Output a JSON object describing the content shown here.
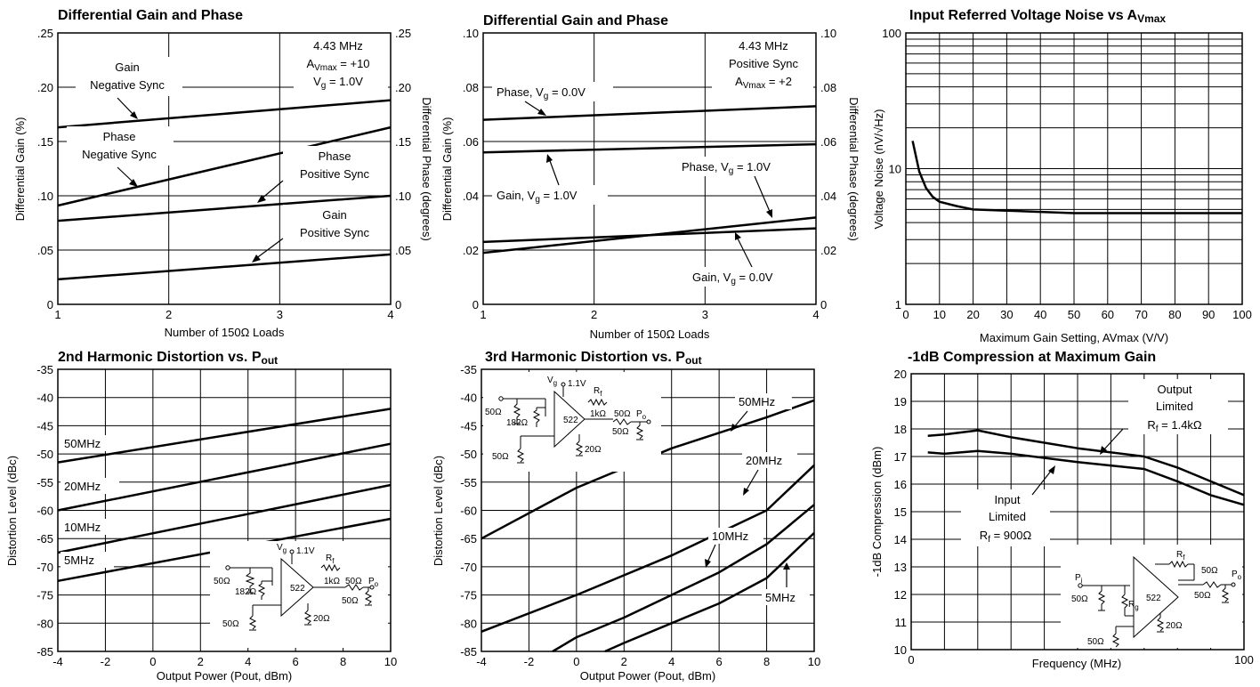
{
  "chart_data": [
    {
      "id": "p1",
      "type": "line",
      "title": "Differential Gain and Phase",
      "xlabel": "Number of 150Ω Loads",
      "ylabel": "Differential Gain (%)",
      "y2label": "Differential Phase (degrees)",
      "xlim": [
        1,
        4
      ],
      "ylim": [
        0,
        0.25
      ],
      "y2lim": [
        0,
        0.25
      ],
      "xticks": [
        "1",
        "2",
        "3",
        "4"
      ],
      "yticks": [
        ".25",
        ".20",
        ".15",
        ".10",
        ".05",
        "0"
      ],
      "y2ticks": [
        ".25",
        ".20",
        ".15",
        ".10",
        ".05",
        "0"
      ],
      "grid": true,
      "annotations": [
        "4.43 MHz",
        "Avmax = +10",
        "Vg = 1.0V"
      ],
      "series": [
        {
          "name": "Gain Negative Sync",
          "x": [
            1,
            4
          ],
          "values": [
            0.163,
            0.188
          ]
        },
        {
          "name": "Phase Negative Sync",
          "x": [
            1,
            4
          ],
          "values": [
            0.091,
            0.163
          ]
        },
        {
          "name": "Phase Positive Sync",
          "x": [
            1,
            4
          ],
          "values": [
            0.077,
            0.1
          ]
        },
        {
          "name": "Gain Positive Sync",
          "x": [
            1,
            4
          ],
          "values": [
            0.023,
            0.046
          ]
        }
      ]
    },
    {
      "id": "p2",
      "type": "line",
      "title": "Differential Gain and Phase",
      "xlabel": "Number of 150Ω Loads",
      "ylabel": "Differential Gain (%)",
      "y2label": "Differential Phase (degrees)",
      "xlim": [
        1,
        4
      ],
      "ylim": [
        0,
        0.1
      ],
      "y2lim": [
        0,
        0.1
      ],
      "xticks": [
        "1",
        "2",
        "3",
        "4"
      ],
      "yticks": [
        ".10",
        ".08",
        ".06",
        ".04",
        ".02",
        "0"
      ],
      "y2ticks": [
        ".10",
        ".08",
        ".06",
        ".04",
        ".02",
        "0"
      ],
      "grid": true,
      "annotations": [
        "4.43 MHz",
        "Positive Sync",
        "Avmax = +2"
      ],
      "series": [
        {
          "name": "Phase, Vg = 0.0V",
          "x": [
            1,
            4
          ],
          "values": [
            0.068,
            0.073
          ]
        },
        {
          "name": "Gain, Vg = 1.0V",
          "x": [
            1,
            4
          ],
          "values": [
            0.056,
            0.059
          ]
        },
        {
          "name": "Phase, Vg = 1.0V",
          "x": [
            1,
            4
          ],
          "values": [
            0.019,
            0.032
          ]
        },
        {
          "name": "Gain, Vg = 0.0V",
          "x": [
            1,
            4
          ],
          "values": [
            0.023,
            0.028
          ]
        }
      ]
    },
    {
      "id": "p3",
      "type": "line",
      "title": "Input Referred Voltage Noise vs AVmax",
      "xlabel": "Maximum Gain Setting, AVmax (V/V)",
      "ylabel": "Voltage Noise (nV/√Hz)",
      "xlim": [
        0,
        100
      ],
      "ylim": [
        1,
        100
      ],
      "yscale": "log",
      "xticks": [
        "0",
        "10",
        "20",
        "30",
        "40",
        "50",
        "60",
        "70",
        "80",
        "90",
        "100"
      ],
      "yticks": [
        "100",
        "10",
        "1"
      ],
      "grid": true,
      "series": [
        {
          "name": "Voltage Noise",
          "x": [
            2,
            4,
            6,
            8,
            10,
            15,
            20,
            30,
            40,
            50,
            60,
            70,
            80,
            90,
            100
          ],
          "values": [
            16,
            9.5,
            7.2,
            6.2,
            5.7,
            5.3,
            5.0,
            4.9,
            4.8,
            4.7,
            4.7,
            4.7,
            4.7,
            4.7,
            4.7
          ]
        }
      ]
    },
    {
      "id": "p4",
      "type": "line",
      "title": "2nd Harmonic Distortion vs. Pout",
      "xlabel": "Output Power (Pout, dBm)",
      "ylabel": "Distortion Level (dBc)",
      "xlim": [
        -4,
        10
      ],
      "ylim": [
        -85,
        -35
      ],
      "xticks": [
        "-4",
        "-2",
        "0",
        "2",
        "4",
        "6",
        "8",
        "10"
      ],
      "yticks": [
        "-35",
        "-40",
        "-45",
        "-50",
        "-55",
        "-60",
        "-65",
        "-70",
        "-75",
        "-80",
        "-85"
      ],
      "grid": true,
      "series": [
        {
          "name": "50MHz",
          "x": [
            -4,
            10
          ],
          "values": [
            -51.5,
            -42
          ]
        },
        {
          "name": "20MHz",
          "x": [
            -4,
            10
          ],
          "values": [
            -60,
            -48.2
          ]
        },
        {
          "name": "10MHz",
          "x": [
            -4,
            10
          ],
          "values": [
            -67.5,
            -55.5
          ]
        },
        {
          "name": "5MHz",
          "x": [
            -4,
            10
          ],
          "values": [
            -72.5,
            -61.5
          ]
        }
      ]
    },
    {
      "id": "p5",
      "type": "line",
      "title": "3rd Harmonic Distortion vs. Pout",
      "xlabel": "Output Power (Pout, dBm)",
      "ylabel": "Distortion Level (dBc)",
      "xlim": [
        -4,
        10
      ],
      "ylim": [
        -85,
        -35
      ],
      "xticks": [
        "-4",
        "-2",
        "0",
        "2",
        "4",
        "6",
        "8",
        "10"
      ],
      "yticks": [
        "-35",
        "-40",
        "-45",
        "-50",
        "-55",
        "-60",
        "-65",
        "-70",
        "-75",
        "-80",
        "-85"
      ],
      "grid": true,
      "series": [
        {
          "name": "50MHz",
          "x": [
            -4,
            0,
            4,
            8,
            10
          ],
          "values": [
            -65,
            -56,
            -49,
            -43.5,
            -40.5
          ]
        },
        {
          "name": "20MHz",
          "x": [
            -4,
            0,
            4,
            8,
            10
          ],
          "values": [
            -81.5,
            -75,
            -68,
            -60,
            -52
          ]
        },
        {
          "name": "10MHz",
          "x": [
            -1,
            0,
            2,
            4,
            6,
            8,
            10
          ],
          "values": [
            -85,
            -82.5,
            -79,
            -75,
            -71,
            -66,
            -59
          ]
        },
        {
          "name": "5MHz",
          "x": [
            1.2,
            2,
            4,
            6,
            8,
            10
          ],
          "values": [
            -85,
            -83.5,
            -80,
            -76.5,
            -72,
            -64
          ]
        }
      ]
    },
    {
      "id": "p6",
      "type": "line",
      "title": "-1dB Compression at Maximum Gain",
      "xlabel": "Frequency (MHz)",
      "ylabel": "-1dB Compression (dBm)",
      "xlim": [
        0,
        100
      ],
      "ylim": [
        10,
        20
      ],
      "xticks": [
        "0",
        "100"
      ],
      "yticks": [
        "20",
        "19",
        "18",
        "17",
        "16",
        "15",
        "14",
        "13",
        "12",
        "11",
        "10"
      ],
      "grid": true,
      "series": [
        {
          "name": "Output Limited Rf = 1.4kΩ",
          "x": [
            5,
            10,
            20,
            30,
            50,
            70,
            80,
            90,
            100
          ],
          "values": [
            17.75,
            17.8,
            17.95,
            17.7,
            17.3,
            17.0,
            16.6,
            16.1,
            15.6
          ]
        },
        {
          "name": "Input Limited Rf = 900Ω",
          "x": [
            5,
            10,
            20,
            30,
            50,
            70,
            80,
            90,
            100
          ],
          "values": [
            17.15,
            17.1,
            17.2,
            17.1,
            16.8,
            16.55,
            16.1,
            15.6,
            15.25
          ]
        }
      ]
    }
  ],
  "labels": {
    "p1": {
      "gain_neg_1": "Gain",
      "gain_neg_2": "Negative Sync",
      "phase_neg_1": "Phase",
      "phase_neg_2": "Negative Sync",
      "phase_pos_1": "Phase",
      "phase_pos_2": "Positive Sync",
      "gain_pos_1": "Gain",
      "gain_pos_2": "Positive Sync",
      "cond_1": "4.43 MHz",
      "cond_2a": "A",
      "cond_2b": "Vmax",
      "cond_2c": " = +10",
      "cond_3a": "V",
      "cond_3b": "g",
      "cond_3c": " = 1.0V"
    },
    "p2": {
      "cond_1": "4.43 MHz",
      "cond_2": "Positive Sync",
      "cond_3a": "A",
      "cond_3b": "Vmax",
      "cond_3c": " = +2",
      "phase0_a": "Phase, V",
      "phase0_b": "g",
      "phase0_c": " = 0.0V",
      "gain1_a": "Gain, V",
      "gain1_b": "g",
      "gain1_c": " = 1.0V",
      "phase1_a": "Phase, V",
      "phase1_b": "g",
      "phase1_c": " = 1.0V",
      "gain0_a": "Gain, V",
      "gain0_b": "g",
      "gain0_c": " = 0.0V"
    },
    "p3": {
      "title_a": "Input Referred Voltage Noise vs A",
      "title_b": "Vmax"
    },
    "p4": {
      "title_a": "2nd Harmonic Distortion vs. P",
      "title_b": "out",
      "l50": "50MHz",
      "l20": "20MHz",
      "l10": "10MHz",
      "l5": "5MHz"
    },
    "p5": {
      "title_a": "3rd Harmonic Distortion vs. P",
      "title_b": "out",
      "l50": "50MHz",
      "l20": "20MHz",
      "l10": "10MHz",
      "l5": "5MHz"
    },
    "p6": {
      "out_1": "Output",
      "out_2": "Limited",
      "out_3a": "R",
      "out_3b": "f",
      "out_3c": " = 1.4kΩ",
      "in_1": "Input",
      "in_2": "Limited",
      "in_3a": "R",
      "in_3b": "f",
      "in_3c": " = 900Ω"
    }
  },
  "schematics": {
    "s4": {
      "vg": "V",
      "vg_sub": "g",
      "supply": "1.1V",
      "rf": "R",
      "rf_sub": "f",
      "r_in": "50Ω",
      "r_g": "182Ω",
      "r_f_val": "1kΩ",
      "chip": "522",
      "r_out": "50Ω",
      "po": "P",
      "po_sub": "o",
      "r_load": "50Ω",
      "r_term": "50Ω",
      "r_bias": "20Ω"
    },
    "s5": {
      "vg": "V",
      "vg_sub": "g",
      "supply": "1.1V",
      "rf": "R",
      "rf_sub": "f",
      "r_in": "50Ω",
      "r_g": "182Ω",
      "r_f_val": "1kΩ",
      "chip": "522",
      "r_out": "50Ω",
      "po": "P",
      "po_sub": "o",
      "r_load": "50Ω",
      "r_term": "50Ω",
      "r_bias": "20Ω"
    },
    "s6": {
      "pi": "P",
      "pi_sub": "i",
      "rf": "R",
      "rf_sub": "f",
      "r_in": "50Ω",
      "rg": "R",
      "rg_sub": "g",
      "chip": "522",
      "r_out": "50Ω",
      "po": "P",
      "po_sub": "o",
      "r_load": "50Ω",
      "r_term": "50Ω",
      "r_bias": "20Ω"
    }
  }
}
